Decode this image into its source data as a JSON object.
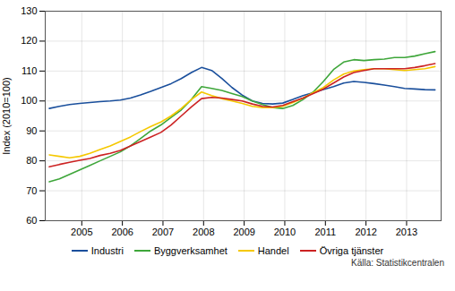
{
  "chart_data": {
    "type": "line",
    "ylabel": "Index (2010=100)",
    "caption": "Källa: Statistikcentralen",
    "xlim": [
      2004.1,
      2013.85
    ],
    "xticks": [
      2005,
      2006,
      2007,
      2008,
      2009,
      2010,
      2011,
      2012,
      2013
    ],
    "ylim": [
      60,
      130
    ],
    "yticks": [
      60,
      70,
      80,
      90,
      100,
      110,
      120,
      130
    ],
    "grid": true,
    "legend": "bottom",
    "x": [
      2004.2,
      2004.45,
      2004.7,
      2004.95,
      2005.2,
      2005.45,
      2005.7,
      2005.95,
      2006.2,
      2006.45,
      2006.7,
      2006.95,
      2007.2,
      2007.45,
      2007.7,
      2007.95,
      2008.2,
      2008.45,
      2008.7,
      2008.95,
      2009.2,
      2009.45,
      2009.7,
      2009.95,
      2010.2,
      2010.45,
      2010.7,
      2010.95,
      2011.2,
      2011.45,
      2011.7,
      2011.95,
      2012.2,
      2012.45,
      2012.7,
      2012.95,
      2013.2,
      2013.45,
      2013.7
    ],
    "series": [
      {
        "name": "Industri",
        "color": "#1a4f9c",
        "values": [
          97.5,
          98.2,
          98.8,
          99.2,
          99.5,
          99.8,
          100.0,
          100.3,
          101.0,
          102.0,
          103.2,
          104.5,
          105.8,
          107.5,
          109.5,
          111.2,
          110.2,
          107.5,
          104.5,
          102.0,
          100.0,
          99.2,
          99.0,
          99.3,
          100.5,
          101.8,
          102.8,
          103.8,
          104.8,
          106.0,
          106.5,
          106.2,
          105.8,
          105.3,
          104.8,
          104.2,
          104.0,
          103.8,
          103.7
        ]
      },
      {
        "name": "Byggverksamhet",
        "color": "#3ea63a",
        "values": [
          73.0,
          74.0,
          75.5,
          77.0,
          78.5,
          80.0,
          81.5,
          83.0,
          85.0,
          87.5,
          90.0,
          92.0,
          94.5,
          97.0,
          100.5,
          104.8,
          104.2,
          103.5,
          102.5,
          101.5,
          100.0,
          98.8,
          97.8,
          97.5,
          98.5,
          100.5,
          103.0,
          106.5,
          110.5,
          113.0,
          113.8,
          113.5,
          113.8,
          114.0,
          114.5,
          114.5,
          115.0,
          115.8,
          116.5
        ]
      },
      {
        "name": "Handel",
        "color": "#f5c800",
        "values": [
          82.0,
          81.5,
          81.0,
          81.5,
          82.5,
          83.8,
          85.0,
          86.5,
          88.0,
          89.8,
          91.5,
          93.0,
          95.0,
          97.5,
          100.5,
          103.0,
          101.8,
          100.8,
          100.0,
          99.2,
          98.2,
          97.8,
          97.8,
          98.2,
          99.5,
          101.0,
          102.8,
          104.5,
          107.0,
          109.0,
          110.0,
          110.5,
          110.8,
          110.8,
          110.5,
          110.2,
          110.5,
          110.8,
          111.5
        ]
      },
      {
        "name": "Övriga tjänster",
        "color": "#cc2222",
        "values": [
          78.0,
          78.8,
          79.5,
          80.2,
          80.8,
          81.8,
          82.5,
          83.5,
          85.0,
          86.5,
          88.0,
          89.5,
          92.0,
          95.0,
          98.0,
          100.8,
          101.2,
          101.0,
          100.5,
          100.0,
          99.0,
          98.2,
          98.0,
          98.5,
          99.8,
          101.0,
          102.5,
          104.0,
          106.0,
          108.0,
          109.5,
          110.2,
          110.8,
          110.8,
          110.8,
          110.8,
          111.2,
          111.8,
          112.5
        ]
      }
    ]
  }
}
